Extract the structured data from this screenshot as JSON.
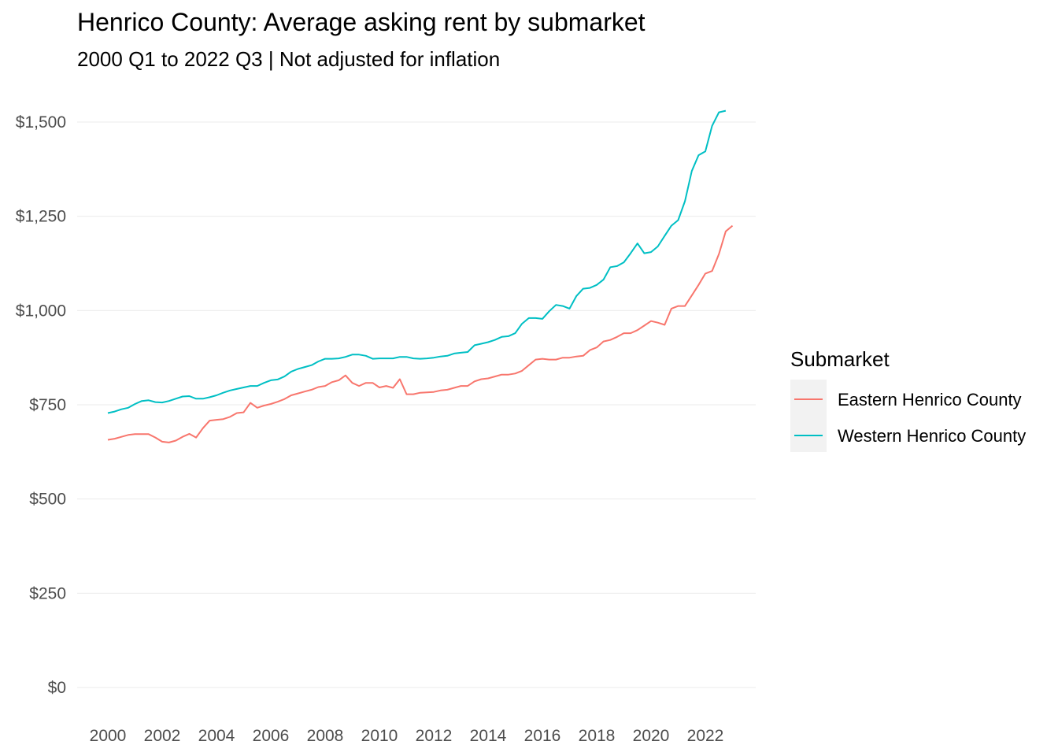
{
  "chart_data": {
    "type": "line",
    "title": "Henrico County: Average asking rent by submarket",
    "subtitle": "2000 Q1 to 2022 Q3 | Not adjusted for inflation",
    "xlabel": "",
    "ylabel": "",
    "xlim": [
      1999.5,
      2023.2
    ],
    "ylim": [
      0,
      1540
    ],
    "x_ticks": [
      2000,
      2002,
      2004,
      2006,
      2008,
      2010,
      2012,
      2014,
      2016,
      2018,
      2020,
      2022
    ],
    "x_tick_labels": [
      "2000",
      "2002",
      "2004",
      "2006",
      "2008",
      "2010",
      "2012",
      "2014",
      "2016",
      "2018",
      "2020",
      "2022"
    ],
    "y_ticks": [
      0,
      250,
      500,
      750,
      1000,
      1250,
      1500
    ],
    "y_tick_labels": [
      "$0",
      "$250",
      "$500",
      "$750",
      "$1,000",
      "$1,250",
      "$1,500"
    ],
    "grid": true,
    "legend": {
      "title": "Submarket",
      "placement": "right"
    },
    "series": [
      {
        "name": "Eastern Henrico County",
        "color": "#F8766D",
        "points": [
          [
            2000.0,
            657
          ],
          [
            2000.25,
            660
          ],
          [
            2000.5,
            665
          ],
          [
            2000.75,
            670
          ],
          [
            2001.0,
            672
          ],
          [
            2001.25,
            672
          ],
          [
            2001.5,
            672
          ],
          [
            2001.75,
            663
          ],
          [
            2002.0,
            652
          ],
          [
            2002.25,
            650
          ],
          [
            2002.5,
            655
          ],
          [
            2002.75,
            665
          ],
          [
            2003.0,
            673
          ],
          [
            2003.25,
            663
          ],
          [
            2003.5,
            688
          ],
          [
            2003.75,
            708
          ],
          [
            2004.0,
            710
          ],
          [
            2004.25,
            712
          ],
          [
            2004.5,
            718
          ],
          [
            2004.75,
            728
          ],
          [
            2005.0,
            730
          ],
          [
            2005.25,
            755
          ],
          [
            2005.5,
            742
          ],
          [
            2005.75,
            748
          ],
          [
            2006.0,
            752
          ],
          [
            2006.25,
            758
          ],
          [
            2006.5,
            765
          ],
          [
            2006.75,
            775
          ],
          [
            2007.0,
            780
          ],
          [
            2007.25,
            785
          ],
          [
            2007.5,
            790
          ],
          [
            2007.75,
            797
          ],
          [
            2008.0,
            800
          ],
          [
            2008.25,
            810
          ],
          [
            2008.5,
            815
          ],
          [
            2008.75,
            828
          ],
          [
            2009.0,
            808
          ],
          [
            2009.25,
            800
          ],
          [
            2009.5,
            808
          ],
          [
            2009.75,
            808
          ],
          [
            2010.0,
            796
          ],
          [
            2010.25,
            800
          ],
          [
            2010.5,
            795
          ],
          [
            2010.75,
            818
          ],
          [
            2011.0,
            778
          ],
          [
            2011.25,
            778
          ],
          [
            2011.5,
            782
          ],
          [
            2011.75,
            783
          ],
          [
            2012.0,
            784
          ],
          [
            2012.25,
            788
          ],
          [
            2012.5,
            790
          ],
          [
            2012.75,
            795
          ],
          [
            2013.0,
            800
          ],
          [
            2013.25,
            800
          ],
          [
            2013.5,
            812
          ],
          [
            2013.75,
            818
          ],
          [
            2014.0,
            820
          ],
          [
            2014.25,
            825
          ],
          [
            2014.5,
            830
          ],
          [
            2014.75,
            830
          ],
          [
            2015.0,
            833
          ],
          [
            2015.25,
            840
          ],
          [
            2015.5,
            855
          ],
          [
            2015.75,
            870
          ],
          [
            2016.0,
            872
          ],
          [
            2016.25,
            870
          ],
          [
            2016.5,
            870
          ],
          [
            2016.75,
            875
          ],
          [
            2017.0,
            875
          ],
          [
            2017.25,
            878
          ],
          [
            2017.5,
            880
          ],
          [
            2017.75,
            895
          ],
          [
            2018.0,
            902
          ],
          [
            2018.25,
            918
          ],
          [
            2018.5,
            922
          ],
          [
            2018.75,
            930
          ],
          [
            2019.0,
            940
          ],
          [
            2019.25,
            940
          ],
          [
            2019.5,
            948
          ],
          [
            2019.75,
            960
          ],
          [
            2020.0,
            972
          ],
          [
            2020.25,
            968
          ],
          [
            2020.5,
            962
          ],
          [
            2020.75,
            1005
          ],
          [
            2021.0,
            1012
          ],
          [
            2021.25,
            1012
          ],
          [
            2021.5,
            1040
          ],
          [
            2021.75,
            1068
          ],
          [
            2022.0,
            1098
          ],
          [
            2022.25,
            1105
          ],
          [
            2022.5,
            1150
          ],
          [
            2022.75,
            1210
          ],
          [
            2023.0,
            1225
          ]
        ]
      },
      {
        "name": "Western Henrico County",
        "color": "#00BFC4",
        "points": [
          [
            2000.0,
            728
          ],
          [
            2000.25,
            732
          ],
          [
            2000.5,
            738
          ],
          [
            2000.75,
            742
          ],
          [
            2001.0,
            752
          ],
          [
            2001.25,
            760
          ],
          [
            2001.5,
            762
          ],
          [
            2001.75,
            757
          ],
          [
            2002.0,
            756
          ],
          [
            2002.25,
            760
          ],
          [
            2002.5,
            766
          ],
          [
            2002.75,
            772
          ],
          [
            2003.0,
            773
          ],
          [
            2003.25,
            766
          ],
          [
            2003.5,
            766
          ],
          [
            2003.75,
            770
          ],
          [
            2004.0,
            775
          ],
          [
            2004.25,
            782
          ],
          [
            2004.5,
            788
          ],
          [
            2004.75,
            792
          ],
          [
            2005.0,
            796
          ],
          [
            2005.25,
            800
          ],
          [
            2005.5,
            800
          ],
          [
            2005.75,
            808
          ],
          [
            2006.0,
            815
          ],
          [
            2006.25,
            817
          ],
          [
            2006.5,
            825
          ],
          [
            2006.75,
            838
          ],
          [
            2007.0,
            845
          ],
          [
            2007.25,
            850
          ],
          [
            2007.5,
            855
          ],
          [
            2007.75,
            865
          ],
          [
            2008.0,
            872
          ],
          [
            2008.25,
            872
          ],
          [
            2008.5,
            873
          ],
          [
            2008.75,
            877
          ],
          [
            2009.0,
            883
          ],
          [
            2009.25,
            883
          ],
          [
            2009.5,
            880
          ],
          [
            2009.75,
            872
          ],
          [
            2010.0,
            873
          ],
          [
            2010.25,
            873
          ],
          [
            2010.5,
            873
          ],
          [
            2010.75,
            877
          ],
          [
            2011.0,
            877
          ],
          [
            2011.25,
            873
          ],
          [
            2011.5,
            872
          ],
          [
            2011.75,
            873
          ],
          [
            2012.0,
            875
          ],
          [
            2012.25,
            878
          ],
          [
            2012.5,
            880
          ],
          [
            2012.75,
            886
          ],
          [
            2013.0,
            888
          ],
          [
            2013.25,
            890
          ],
          [
            2013.5,
            908
          ],
          [
            2013.75,
            912
          ],
          [
            2014.0,
            916
          ],
          [
            2014.25,
            922
          ],
          [
            2014.5,
            930
          ],
          [
            2014.75,
            932
          ],
          [
            2015.0,
            940
          ],
          [
            2015.25,
            965
          ],
          [
            2015.5,
            980
          ],
          [
            2015.75,
            980
          ],
          [
            2016.0,
            978
          ],
          [
            2016.25,
            998
          ],
          [
            2016.5,
            1015
          ],
          [
            2016.75,
            1012
          ],
          [
            2017.0,
            1005
          ],
          [
            2017.25,
            1038
          ],
          [
            2017.5,
            1058
          ],
          [
            2017.75,
            1060
          ],
          [
            2018.0,
            1068
          ],
          [
            2018.25,
            1082
          ],
          [
            2018.5,
            1115
          ],
          [
            2018.75,
            1118
          ],
          [
            2019.0,
            1128
          ],
          [
            2019.25,
            1152
          ],
          [
            2019.5,
            1178
          ],
          [
            2019.75,
            1152
          ],
          [
            2020.0,
            1155
          ],
          [
            2020.25,
            1170
          ],
          [
            2020.5,
            1198
          ],
          [
            2020.75,
            1225
          ],
          [
            2021.0,
            1240
          ],
          [
            2021.25,
            1290
          ],
          [
            2021.5,
            1370
          ],
          [
            2021.75,
            1412
          ],
          [
            2022.0,
            1422
          ],
          [
            2022.25,
            1490
          ],
          [
            2022.5,
            1526
          ],
          [
            2022.75,
            1530
          ]
        ]
      }
    ]
  }
}
